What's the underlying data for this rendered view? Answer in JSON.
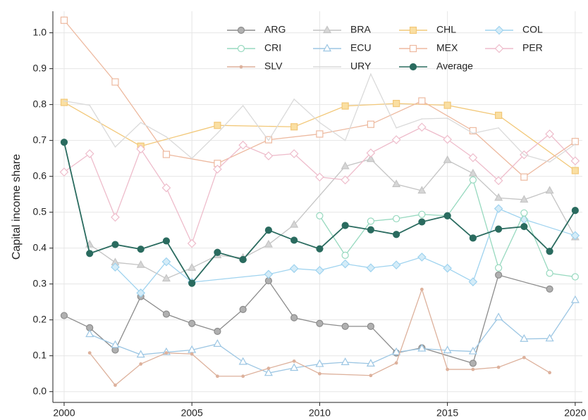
{
  "chart_data": {
    "type": "line",
    "y_label": "Capital income share",
    "xlim": [
      1999.56,
      2020.28
    ],
    "xticks": [
      2000,
      2005,
      2010,
      2015,
      2020
    ],
    "ylim": [
      -0.03,
      1.06
    ],
    "yticks": [
      {
        "value": 0,
        "label": "0.0"
      },
      0.1,
      0.2,
      0.3,
      0.4,
      0.5,
      0.6,
      0.7,
      0.8,
      0.9,
      {
        "value": 1,
        "label": "1.0"
      }
    ],
    "grid": true,
    "legend": "top-right",
    "series": [
      {
        "name": "ARG",
        "color": "#8c8c8c",
        "fill": "#b0b0b0",
        "marker": "circle",
        "x": [
          2000,
          2001,
          2002,
          2003,
          2004,
          2005,
          2006,
          2007,
          2008,
          2009,
          2010,
          2011,
          2012,
          2013,
          2014,
          2016,
          2017,
          2019
        ],
        "values": [
          0.212,
          0.178,
          0.116,
          0.265,
          0.216,
          0.19,
          0.168,
          0.229,
          0.309,
          0.206,
          0.19,
          0.182,
          0.182,
          0.108,
          0.122,
          0.079,
          0.325,
          0.286
        ]
      },
      {
        "name": "BRA",
        "color": "#c4c4c4",
        "fill": "#d6d6d6",
        "marker": "triangle",
        "x": [
          2001,
          2002,
          2003,
          2004,
          2005,
          2006,
          2007,
          2008,
          2009,
          2011,
          2012,
          2013,
          2014,
          2015,
          2016,
          2017,
          2018,
          2019,
          2020
        ],
        "values": [
          0.41,
          0.36,
          0.353,
          0.315,
          0.345,
          0.38,
          0.373,
          0.41,
          0.465,
          0.628,
          0.648,
          0.578,
          0.56,
          0.645,
          0.608,
          0.54,
          0.535,
          0.56,
          0.43
        ]
      },
      {
        "name": "CHL",
        "color": "#f2c879",
        "fill": "#fadfa2",
        "marker": "square",
        "x": [
          2000,
          2003,
          2006,
          2009,
          2011,
          2013,
          2015,
          2017,
          2020
        ],
        "values": [
          0.806,
          0.684,
          0.742,
          0.738,
          0.796,
          0.803,
          0.798,
          0.77,
          0.616
        ]
      },
      {
        "name": "COL",
        "color": "#9fd3ef",
        "fill": "#d4ecf8",
        "marker": "diamond",
        "x": [
          2002,
          2003,
          2004,
          2005,
          2008,
          2009,
          2010,
          2011,
          2012,
          2013,
          2014,
          2015,
          2016,
          2017,
          2018,
          2020
        ],
        "values": [
          0.347,
          0.275,
          0.362,
          0.305,
          0.327,
          0.343,
          0.338,
          0.356,
          0.345,
          0.353,
          0.375,
          0.344,
          0.306,
          0.51,
          0.48,
          0.435
        ]
      },
      {
        "name": "CRI",
        "color": "#97d9bf",
        "fill": "#ffffff",
        "marker": "circle",
        "x": [
          2010,
          2011,
          2012,
          2013,
          2014,
          2015,
          2016,
          2017,
          2018,
          2019,
          2020
        ],
        "values": [
          0.49,
          0.38,
          0.475,
          0.482,
          0.494,
          0.49,
          0.59,
          0.345,
          0.498,
          0.33,
          0.32
        ]
      },
      {
        "name": "ECU",
        "color": "#9cc6e3",
        "fill": "#ffffff",
        "marker": "triangle",
        "x": [
          2001,
          2002,
          2003,
          2004,
          2005,
          2006,
          2007,
          2008,
          2009,
          2010,
          2011,
          2012,
          2013,
          2014,
          2015,
          2016,
          2017,
          2018,
          2019,
          2020
        ],
        "values": [
          0.16,
          0.13,
          0.103,
          0.11,
          0.116,
          0.133,
          0.083,
          0.052,
          0.066,
          0.077,
          0.082,
          0.078,
          0.11,
          0.12,
          0.115,
          0.112,
          0.207,
          0.147,
          0.148,
          0.255
        ]
      },
      {
        "name": "MEX",
        "color": "#edb99f",
        "fill": "#ffffff",
        "marker": "square",
        "x": [
          2000,
          2002,
          2004,
          2006,
          2008,
          2010,
          2012,
          2014,
          2016,
          2018,
          2020
        ],
        "values": [
          1.035,
          0.863,
          0.661,
          0.636,
          0.702,
          0.718,
          0.745,
          0.81,
          0.727,
          0.598,
          0.697
        ]
      },
      {
        "name": "PER",
        "color": "#eebccb",
        "fill": "#ffffff",
        "marker": "diamond",
        "x": [
          2000,
          2001,
          2002,
          2003,
          2004,
          2005,
          2006,
          2007,
          2008,
          2009,
          2010,
          2011,
          2012,
          2013,
          2014,
          2015,
          2016,
          2017,
          2018,
          2019,
          2020
        ],
        "values": [
          0.612,
          0.663,
          0.486,
          0.676,
          0.568,
          0.413,
          0.62,
          0.687,
          0.657,
          0.663,
          0.598,
          0.59,
          0.665,
          0.702,
          0.737,
          0.703,
          0.652,
          0.588,
          0.66,
          0.718,
          0.643
        ]
      },
      {
        "name": "SLV",
        "color": "#ddb19c",
        "fill": "#ddb19c",
        "marker": "dot",
        "x": [
          2001,
          2002,
          2003,
          2004,
          2005,
          2006,
          2007,
          2008,
          2009,
          2010,
          2012,
          2013,
          2014,
          2015,
          2016,
          2017,
          2018,
          2019
        ],
        "values": [
          0.108,
          0.018,
          0.077,
          0.108,
          0.105,
          0.043,
          0.043,
          0.065,
          0.085,
          0.05,
          0.045,
          0.08,
          0.285,
          0.062,
          0.062,
          0.068,
          0.095,
          0.053
        ]
      },
      {
        "name": "URY",
        "color": "#dadada",
        "fill": "#dadada",
        "marker": "none",
        "x": [
          2000,
          2001,
          2002,
          2003,
          2004,
          2005,
          2006,
          2007,
          2008,
          2009,
          2010,
          2011,
          2012,
          2013,
          2014,
          2015,
          2016,
          2017,
          2018,
          2019,
          2020
        ],
        "values": [
          0.81,
          0.798,
          0.682,
          0.75,
          0.71,
          0.65,
          0.72,
          0.797,
          0.7,
          0.815,
          0.75,
          0.7,
          0.885,
          0.735,
          0.76,
          0.762,
          0.72,
          0.735,
          0.66,
          0.64,
          0.69
        ]
      },
      {
        "name": "Average",
        "color": "#2a6b5f",
        "fill": "#2a6b5f",
        "marker": "circle",
        "x": [
          2000,
          2001,
          2002,
          2003,
          2004,
          2005,
          2006,
          2007,
          2008,
          2009,
          2010,
          2011,
          2012,
          2013,
          2014,
          2015,
          2016,
          2017,
          2018,
          2019,
          2020
        ],
        "values": [
          0.695,
          0.385,
          0.41,
          0.397,
          0.42,
          0.302,
          0.388,
          0.368,
          0.45,
          0.422,
          0.398,
          0.463,
          0.451,
          0.438,
          0.473,
          0.49,
          0.428,
          0.453,
          0.46,
          0.391,
          0.505
        ]
      }
    ]
  }
}
